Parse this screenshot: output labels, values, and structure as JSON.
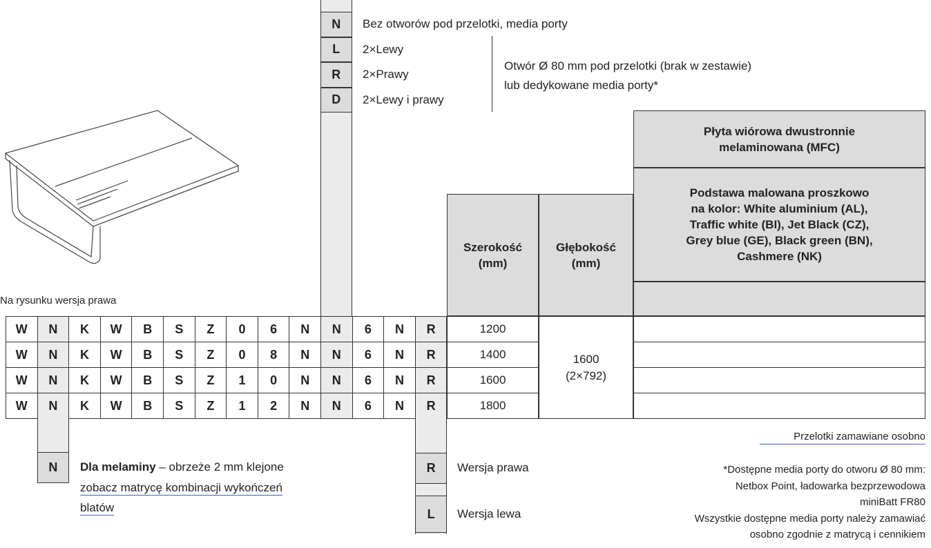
{
  "top_options": [
    {
      "code": "N",
      "label": "Bez otworów pod przelotki, media porty"
    },
    {
      "code": "L",
      "label": "2×Lewy"
    },
    {
      "code": "R",
      "label": "2×Prawy"
    },
    {
      "code": "D",
      "label": "2×Lewy i prawy"
    }
  ],
  "hole_note": [
    "Otwór Ø 80 mm pod przelotki (brak w zestawie)",
    "lub dedykowane media porty*"
  ],
  "image_caption": "Na rysunku wersja prawa",
  "headers": {
    "width": [
      "Szerokość",
      "(mm)"
    ],
    "depth": [
      "Głębokość",
      "(mm)"
    ],
    "material": [
      "Płyta wiórowa dwustronnie",
      "melaminowana (MFC)"
    ],
    "base": [
      "Podstawa malowana proszkowo",
      "na kolor: White aluminium (AL),",
      "Traffic white (BI), Jet Black (CZ),",
      "Grey blue (GE), Black green (BN),",
      "Cashmere (NK)"
    ]
  },
  "table": {
    "rows": [
      {
        "code": [
          "W",
          "N",
          "K",
          "W",
          "B",
          "S",
          "Z",
          "0",
          "6",
          "N",
          "N",
          "6",
          "N",
          "R"
        ],
        "width": 1200
      },
      {
        "code": [
          "W",
          "N",
          "K",
          "W",
          "B",
          "S",
          "Z",
          "0",
          "8",
          "N",
          "N",
          "6",
          "N",
          "R"
        ],
        "width": 1400
      },
      {
        "code": [
          "W",
          "N",
          "K",
          "W",
          "B",
          "S",
          "Z",
          "1",
          "0",
          "N",
          "N",
          "6",
          "N",
          "R"
        ],
        "width": 1600
      },
      {
        "code": [
          "W",
          "N",
          "K",
          "W",
          "B",
          "S",
          "Z",
          "1",
          "2",
          "N",
          "N",
          "6",
          "N",
          "R"
        ],
        "width": 1800
      }
    ],
    "depth": [
      "1600",
      "(2×792)"
    ]
  },
  "edge_option": {
    "code": "N",
    "bold": "Dla melaminy",
    "text": " – obrzeże 2 mm klejone",
    "link": [
      "zobacz matrycę kombinacji wykończeń",
      "blatów"
    ]
  },
  "version_options": [
    {
      "code": "R",
      "label": "Wersja prawa"
    },
    {
      "code": "L",
      "label": "Wersja lewa"
    }
  ],
  "order_note": "Przelotki zamawiane osobno",
  "footnote": [
    "*Dostępne media porty do otworu Ø 80 mm:",
    "Netbox Point, ładowarka bezprzewodowa",
    "miniBatt FR80",
    "Wszystkie dostępne media porty należy zamawiać",
    "osobno zgodnie z matrycą i cennikiem"
  ]
}
